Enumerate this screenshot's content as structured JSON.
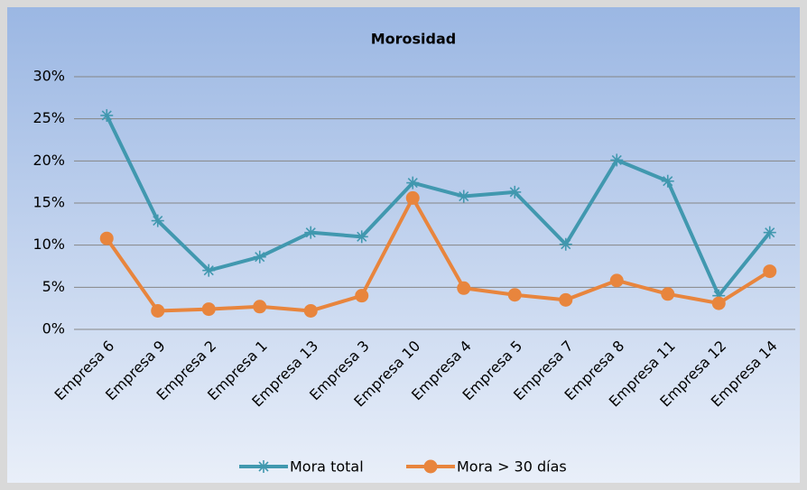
{
  "chart_data": {
    "type": "line",
    "title": "Morosidad",
    "categories": [
      "Empresa 6",
      "Empresa 9",
      "Empresa 2",
      "Empresa 1",
      "Empresa 13",
      "Empresa 3",
      "Empresa 10",
      "Empresa 4",
      "Empresa 5",
      "Empresa 7",
      "Empresa 8",
      "Empresa 11",
      "Empresa 12",
      "Empresa 14"
    ],
    "series": [
      {
        "name": "Mora total",
        "color": "#4198af",
        "marker": "asterisk",
        "values": [
          25.4,
          12.9,
          7.0,
          8.6,
          11.5,
          11.0,
          17.4,
          15.8,
          16.3,
          10.1,
          20.1,
          17.6,
          4.0,
          11.5
        ]
      },
      {
        "name": "Mora > 30 días",
        "color": "#e8853d",
        "marker": "circle",
        "values": [
          10.8,
          2.2,
          2.4,
          2.7,
          2.2,
          4.0,
          15.6,
          4.9,
          4.1,
          3.5,
          5.8,
          4.2,
          3.1,
          6.9
        ]
      }
    ],
    "ylim": [
      0,
      30
    ],
    "yticks": [
      {
        "value": 0,
        "label": "0%"
      },
      {
        "value": 5,
        "label": "5%"
      },
      {
        "value": 10,
        "label": "10%"
      },
      {
        "value": 15,
        "label": "15%"
      },
      {
        "value": 20,
        "label": "20%"
      },
      {
        "value": 25,
        "label": "25%"
      },
      {
        "value": 30,
        "label": "30%"
      }
    ],
    "grid": true,
    "legend": "bottom"
  }
}
